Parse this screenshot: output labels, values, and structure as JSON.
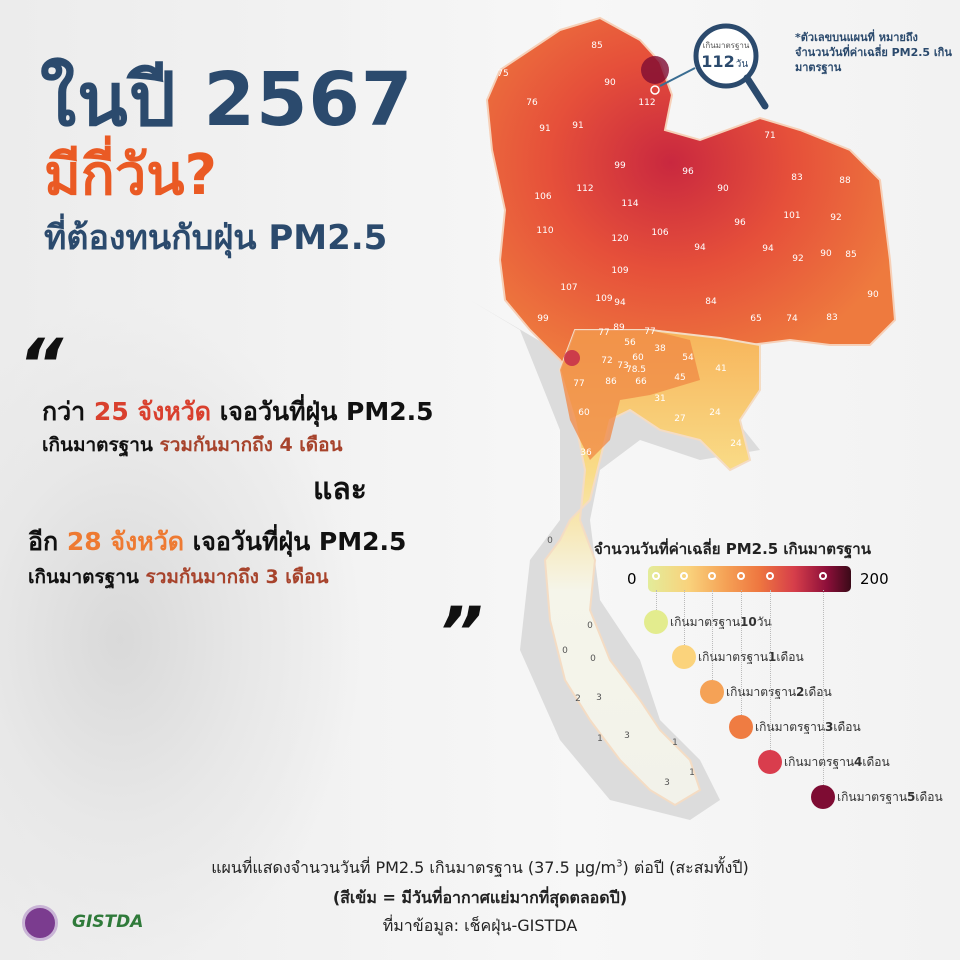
{
  "headline": {
    "line1": "ในปี 2567",
    "line2": "มีกี่วัน?",
    "line3": "ที่ต้องทนกับฝุ่น PM2.5"
  },
  "quote_open": "“",
  "quote_close": "”",
  "paragraph1": {
    "a": "กว่า ",
    "count": "25 จังหวัด",
    "b": " เจอวันที่ฝุ่น PM2.5",
    "c": "เกินมาตรฐาน ",
    "d": "รวมกันมากถึง 4 เดือน"
  },
  "and": "และ",
  "paragraph2": {
    "a": "อีก ",
    "count": "28 จังหวัด",
    "b": " เจอวันที่ฝุ่น PM2.5",
    "c": "เกินมาตรฐาน ",
    "d": "รวมกันมากถึง 3 เดือน"
  },
  "magnifier": {
    "label": "เกินมาตรฐาน",
    "value": "112",
    "unit": "วัน"
  },
  "note": "*ตัวเลขบนแผนที่ หมายถึง จำนวนวันที่ค่าเฉลี่ย PM2.5 เกินมาตรฐาน",
  "map": {
    "province_values": [
      "85",
      "75",
      "90",
      "76",
      "112",
      "91",
      "91",
      "99",
      "106",
      "112",
      "114",
      "110",
      "120",
      "106",
      "109",
      "107",
      "109",
      "94",
      "99",
      "71",
      "96",
      "90",
      "83",
      "88",
      "96",
      "101",
      "92",
      "94",
      "94",
      "92",
      "90",
      "85",
      "84",
      "65",
      "74",
      "83",
      "90",
      "77",
      "89",
      "77",
      "56",
      "38",
      "72",
      "60",
      "54",
      "73",
      "78.5",
      "41",
      "77",
      "86",
      "66",
      "45",
      "31",
      "24",
      "60",
      "27",
      "24",
      "36",
      "0",
      "0",
      "0",
      "0",
      "2",
      "3",
      "1",
      "3",
      "1",
      "1",
      "3"
    ]
  },
  "legend": {
    "title": "จำนวนวันที่ค่าเฉลี่ย PM2.5 เกินมาตรฐาน",
    "min": "0",
    "max": "200",
    "items": [
      {
        "prefix": "เกินมาตรฐาน ",
        "num": "10",
        "unit": " วัน",
        "color": "#e3ec8e"
      },
      {
        "prefix": "เกินมาตรฐาน ",
        "num": "1",
        "unit": " เดือน",
        "color": "#fbd37c"
      },
      {
        "prefix": "เกินมาตรฐาน ",
        "num": "2",
        "unit": " เดือน",
        "color": "#f5a256"
      },
      {
        "prefix": "เกินมาตรฐาน ",
        "num": "3",
        "unit": " เดือน",
        "color": "#ef7c42"
      },
      {
        "prefix": "เกินมาตรฐาน ",
        "num": "4",
        "unit": " เดือน",
        "color": "#d93d4d"
      },
      {
        "prefix": "เกินมาตรฐาน ",
        "num": "5",
        "unit": " เดือน",
        "color": "#7e0c33"
      }
    ]
  },
  "caption": {
    "line1a": "แผนที่แสดงจำนวนวันที่ PM2.5 เกินมาตรฐาน (37.5 µg/m",
    "sup": "3",
    "line1b": ") ต่อปี (สะสมทั้งปี)",
    "line2": "(สีเข้ม = มีวันที่อากาศแย่มากที่สุดตลอดปี)",
    "line3": "ที่มาข้อมูล: เช็คฝุ่น-GISTDA"
  },
  "logos": {
    "gistda": "GISTDA"
  },
  "colors": {
    "navy": "#2b4a6d",
    "accent": "#ea5a24"
  }
}
